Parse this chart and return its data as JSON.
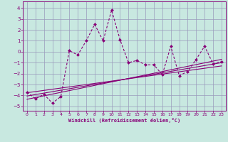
{
  "title": "",
  "xlabel": "Windchill (Refroidissement éolien,°C)",
  "ylabel": "",
  "background_color": "#c8e8e0",
  "grid_color": "#9999bb",
  "line_color": "#880077",
  "xlim": [
    -0.5,
    23.5
  ],
  "ylim": [
    -5.4,
    4.6
  ],
  "yticks": [
    -5,
    -4,
    -3,
    -2,
    -1,
    0,
    1,
    2,
    3,
    4
  ],
  "xticks": [
    0,
    1,
    2,
    3,
    4,
    5,
    6,
    7,
    8,
    9,
    10,
    11,
    12,
    13,
    14,
    15,
    16,
    17,
    18,
    19,
    20,
    21,
    22,
    23
  ],
  "scatter_x": [
    0,
    1,
    2,
    3,
    4,
    5,
    6,
    7,
    8,
    9,
    10,
    11,
    12,
    13,
    14,
    15,
    16,
    17,
    18,
    19,
    20,
    21,
    22,
    23
  ],
  "scatter_y": [
    -3.7,
    -4.3,
    -3.9,
    -4.7,
    -4.1,
    0.1,
    -0.3,
    1.0,
    2.5,
    1.0,
    3.8,
    1.1,
    -1.0,
    -0.8,
    -1.2,
    -1.2,
    -2.1,
    0.5,
    -2.2,
    -1.8,
    -0.7,
    0.5,
    -1.1,
    -0.9
  ],
  "line1_x": [
    0,
    23
  ],
  "line1_y": [
    -4.05,
    -1.0
  ],
  "line2_x": [
    0,
    23
  ],
  "line2_y": [
    -3.75,
    -1.3
  ],
  "line3_x": [
    0,
    23
  ],
  "line3_y": [
    -4.35,
    -0.7
  ]
}
